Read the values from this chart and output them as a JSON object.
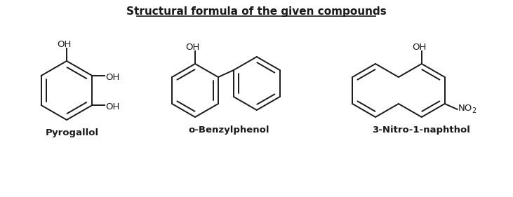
{
  "title": "Structural formula of the given compounds",
  "title_fontsize": 11,
  "bg_color": "#ffffff",
  "line_color": "#1a1a1a",
  "label_pyrogallol": "Pyrogallol",
  "label_benzylphenol": "o-Benzylphenol",
  "label_naphthol": "3-Nitro-1-naphthol",
  "lw": 1.4
}
